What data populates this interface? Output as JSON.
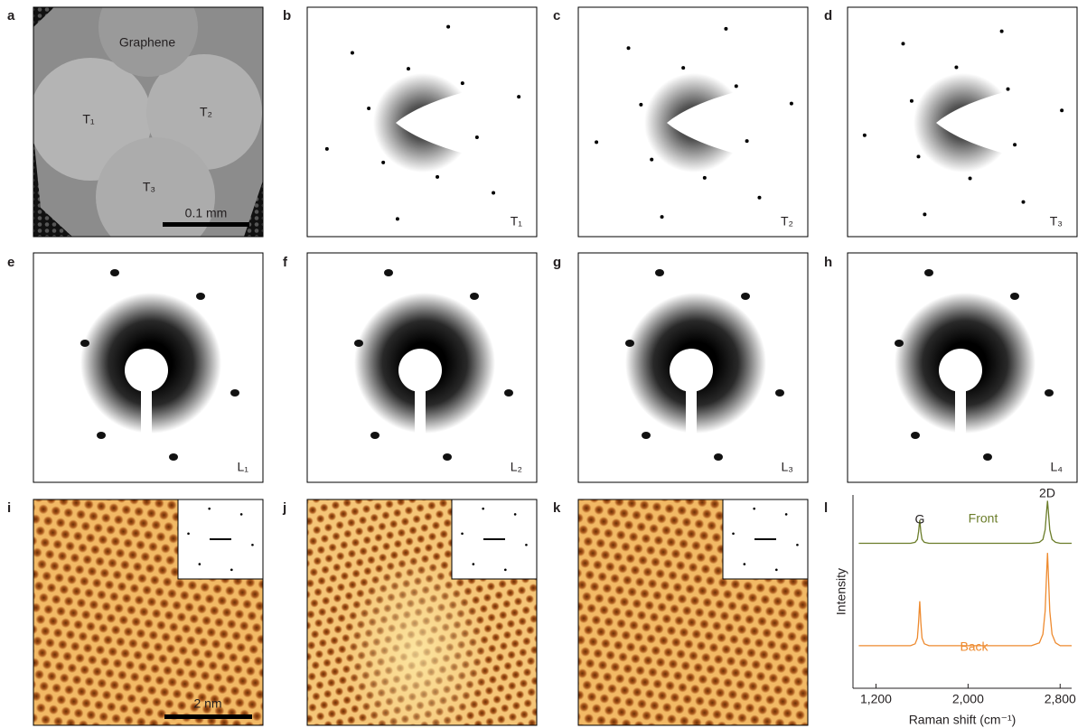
{
  "panel_labels": [
    "a",
    "b",
    "c",
    "d",
    "e",
    "f",
    "g",
    "h",
    "i",
    "j",
    "k",
    "l"
  ],
  "panel_a": {
    "region_label": "Graphene",
    "domain_labels": [
      "T₁",
      "T₂",
      "T₃"
    ],
    "scale_bar": "0.1 mm"
  },
  "diffraction_captions": [
    "T₁",
    "T₂",
    "T₃",
    "L₁",
    "L₂",
    "L₃",
    "L₄"
  ],
  "panel_i": {
    "scale_bar": "2 nm"
  },
  "chart_data": {
    "type": "line",
    "xlabel": "Raman shift (cm⁻¹)",
    "ylabel": "Intensity",
    "annotations": [
      "G",
      "2D"
    ],
    "x": [
      1050,
      1150,
      1250,
      1350,
      1450,
      1500,
      1540,
      1560,
      1570,
      1580,
      1590,
      1600,
      1620,
      1660,
      1750,
      1850,
      1950,
      2050,
      2150,
      2250,
      2350,
      2450,
      2550,
      2620,
      2650,
      2670,
      2680,
      2690,
      2700,
      2710,
      2730,
      2760,
      2800,
      2850,
      2900
    ],
    "series": [
      {
        "name": "Front",
        "color": "#6b7d2a",
        "values": [
          7.5,
          7.5,
          7.5,
          7.5,
          7.5,
          7.5,
          7.55,
          7.7,
          8.1,
          8.7,
          8.1,
          7.7,
          7.55,
          7.5,
          7.5,
          7.5,
          7.5,
          7.5,
          7.5,
          7.5,
          7.5,
          7.5,
          7.5,
          7.55,
          7.7,
          8.2,
          9.0,
          9.7,
          9.0,
          8.2,
          7.7,
          7.55,
          7.5,
          7.5,
          7.5
        ]
      },
      {
        "name": "Back",
        "color": "#ee8a2e",
        "values": [
          2.2,
          2.2,
          2.2,
          2.2,
          2.2,
          2.2,
          2.3,
          2.6,
          3.4,
          4.5,
          3.4,
          2.6,
          2.3,
          2.2,
          2.2,
          2.2,
          2.2,
          2.2,
          2.2,
          2.2,
          2.2,
          2.2,
          2.2,
          2.35,
          2.8,
          4.0,
          5.6,
          7.0,
          5.6,
          4.0,
          2.8,
          2.35,
          2.2,
          2.2,
          2.2
        ]
      }
    ],
    "xlim": [
      1000,
      2900
    ],
    "ylim": [
      0,
      10
    ],
    "xticks": [
      {
        "value": 1200,
        "label": "1,200"
      },
      {
        "value": 2000,
        "label": "2,000"
      },
      {
        "value": 2800,
        "label": "2,800"
      }
    ]
  }
}
